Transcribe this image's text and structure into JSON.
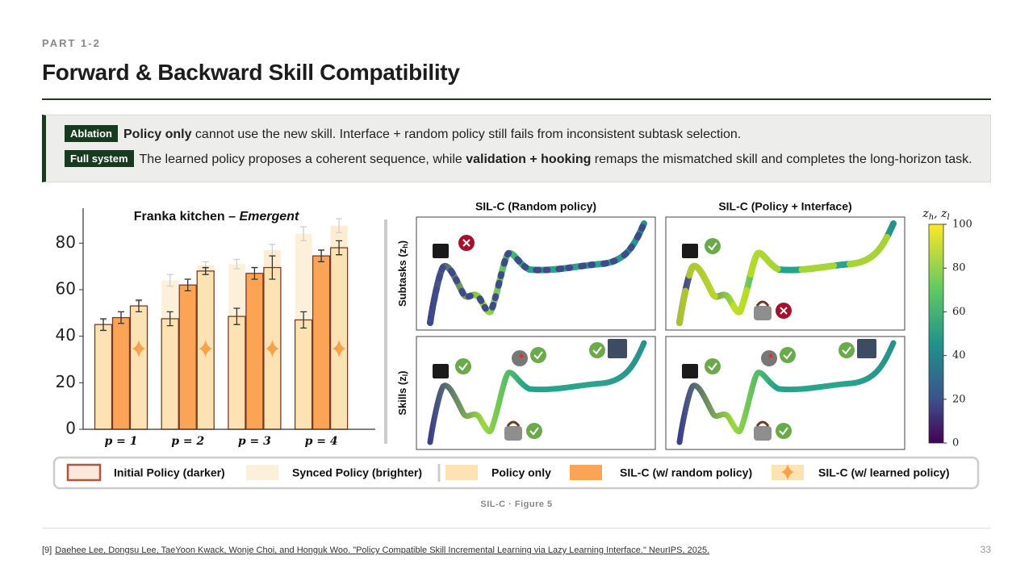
{
  "header": {
    "part": "PART 1-2",
    "title": "Forward & Backward Skill Compatibility"
  },
  "callout": {
    "rows": [
      {
        "tag": "Ablation",
        "segments": [
          {
            "text": "Policy only",
            "bold": true
          },
          {
            "text": " cannot use the new skill. Interface + random policy still fails from inconsistent subtask selection.",
            "bold": false
          }
        ]
      },
      {
        "tag": "Full system",
        "segments": [
          {
            "text": "The learned policy proposes a coherent sequence, while ",
            "bold": false
          },
          {
            "text": "validation + hooking",
            "bold": true
          },
          {
            "text": " remaps the mismatched skill and completes the long-horizon task.",
            "bold": false
          }
        ]
      }
    ]
  },
  "chart_data": {
    "type": "bar",
    "title": "Franka kitchen –",
    "title_emphasis": "Emergent",
    "categories": [
      "p = 1",
      "p = 2",
      "p = 3",
      "p = 4"
    ],
    "initial_label": "Initial Policy (darker)",
    "synced_label": "Synced Policy (brighter)",
    "series": [
      {
        "name": "Policy only",
        "color": "#fde2b4",
        "synced_color": "#fdf0db",
        "values": [
          45,
          47.5,
          48.5,
          47
        ],
        "errors": [
          2.5,
          3,
          3.5,
          3.5
        ],
        "synced_values": [
          45,
          64,
          71,
          84
        ],
        "synced_errors": [
          2,
          2.5,
          2,
          3
        ]
      },
      {
        "name": "SIL-C (w/ random policy)",
        "color": "#fba456",
        "synced_color": "#fcc792",
        "values": [
          48,
          62,
          67,
          74.5
        ],
        "errors": [
          2.5,
          2.5,
          2.5,
          2.5
        ],
        "synced_values": [
          48,
          62,
          67,
          74.5
        ],
        "synced_errors": [
          2.5,
          2.5,
          2.5,
          2.5
        ]
      },
      {
        "name": "SIL-C (w/ learned policy)",
        "color": "#fde2b4",
        "synced_color": "#fdecd2",
        "values": [
          53,
          68,
          69.5,
          78
        ],
        "errors": [
          2.5,
          1.5,
          5,
          3
        ],
        "synced_values": [
          53,
          70.5,
          77,
          87.5
        ],
        "synced_errors": [
          2,
          1.5,
          2.5,
          3
        ]
      }
    ],
    "ylim": [
      0,
      95
    ],
    "yticks": [
      0,
      20,
      40,
      60,
      80
    ],
    "grid": false
  },
  "trajectory_panels": {
    "columns": [
      "SIL-C (Random policy)",
      "SIL-C (Policy + Interface)"
    ],
    "rows": [
      {
        "prefix": "Subtasks (z",
        "sub": "h",
        "suffix": ")"
      },
      {
        "prefix": "Skills (z",
        "sub": "l",
        "suffix": ")"
      }
    ],
    "colorbar": {
      "label_parts": [
        "z",
        "h",
        ", z",
        "l"
      ],
      "lim": [
        0,
        100
      ],
      "ticks": [
        0,
        20,
        40,
        60,
        80,
        100
      ]
    }
  },
  "caption": "SIL-C · Figure 5",
  "footnote": {
    "marker": "[9]",
    "text": "Daehee Lee, Dongsu Lee, TaeYoon Kwack, Wonje Choi, and Honguk Woo. \"Policy Compatible Skill Incremental Learning via Lazy Learning Interface.\" NeurIPS, 2025."
  },
  "page_number": "33"
}
